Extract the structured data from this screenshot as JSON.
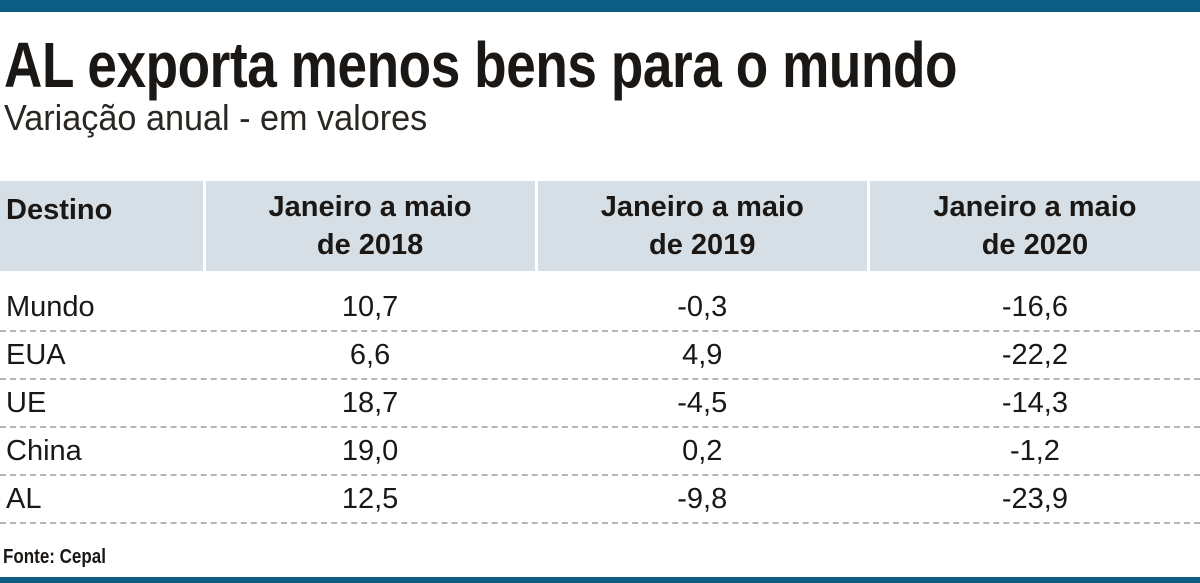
{
  "colors": {
    "accent_bar": "#0d5c83",
    "header_bg": "#d6dfe6",
    "row_divider": "#b5b5b5"
  },
  "chart_data": {
    "type": "table",
    "title": "AL exporta menos bens para o mundo",
    "subtitle": "Variação anual - em valores",
    "columns": [
      "Destino",
      "Janeiro a maio de 2018",
      "Janeiro a maio de 2019",
      "Janeiro a maio de 2020"
    ],
    "header_lines": [
      [
        "Destino",
        ""
      ],
      [
        "Janeiro a maio",
        "de 2018"
      ],
      [
        "Janeiro a maio",
        "de 2019"
      ],
      [
        "Janeiro a maio",
        "de 2020"
      ]
    ],
    "rows": [
      [
        "Mundo",
        "10,7",
        "-0,3",
        "-16,6"
      ],
      [
        "EUA",
        "6,6",
        "4,9",
        "-22,2"
      ],
      [
        "UE",
        "18,7",
        "-4,5",
        "-14,3"
      ],
      [
        "China",
        "19,0",
        "0,2",
        "-1,2"
      ],
      [
        "AL",
        "12,5",
        "-9,8",
        "-23,9"
      ]
    ],
    "source": "Fonte: Cepal"
  }
}
